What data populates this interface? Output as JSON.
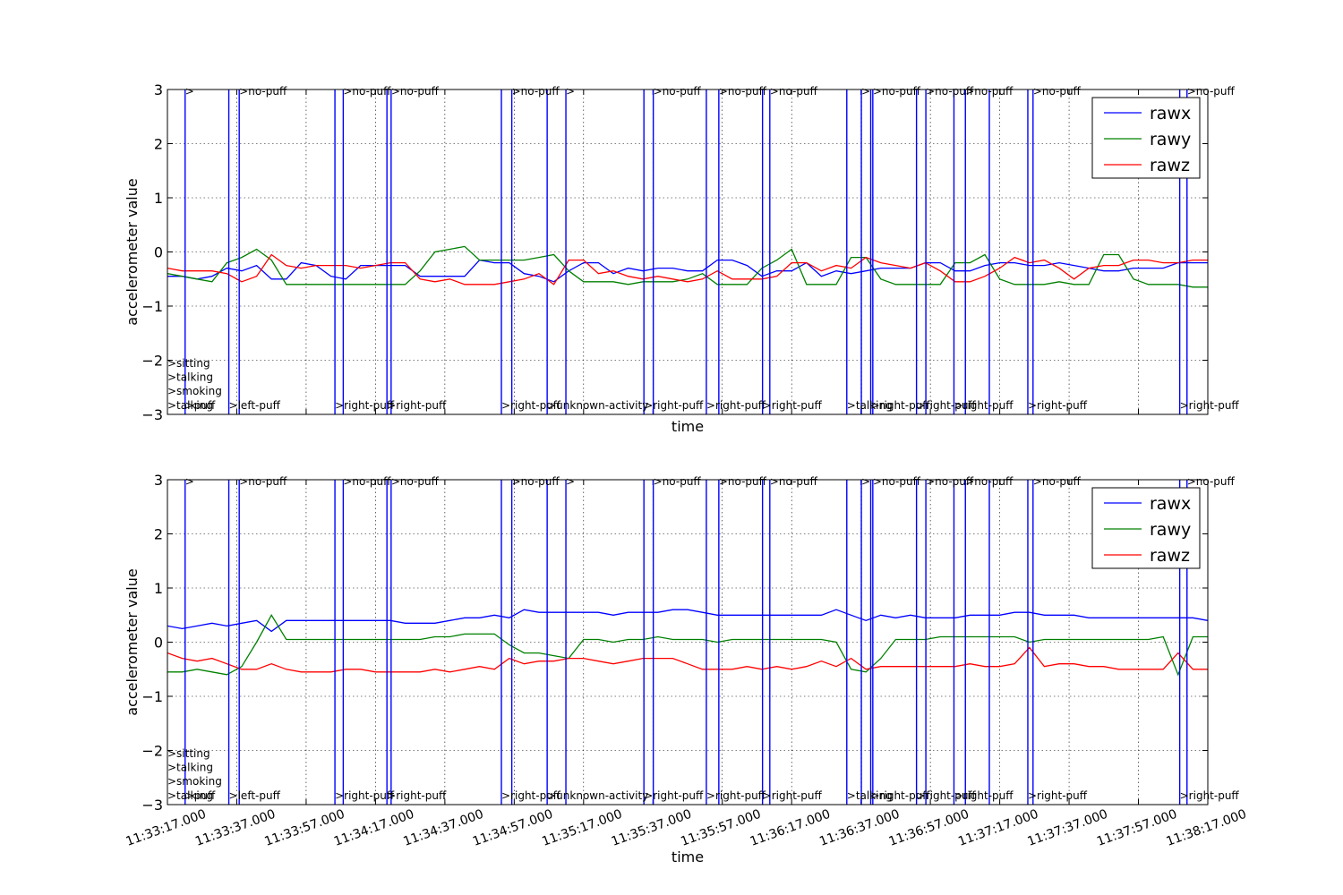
{
  "chart_data": [
    {
      "type": "line",
      "xlabel": "time",
      "ylabel": "accelerometer value",
      "ylim": [
        -3,
        3
      ],
      "yticks": [
        3,
        2,
        1,
        0,
        -1,
        -2,
        -3
      ],
      "ytick_labels": [
        "3",
        "2",
        "1",
        "0",
        "−1",
        "−2",
        "−3"
      ],
      "grid": true,
      "legend_placement": "top-right",
      "x_tick_labels": [],
      "colors": {
        "rawx": "#0000ff",
        "rawy": "#008000",
        "rawz": "#ff0000"
      },
      "series": [
        {
          "name": "rawx",
          "values": [
            -0.45,
            -0.45,
            -0.5,
            -0.45,
            -0.3,
            -0.35,
            -0.25,
            -0.5,
            -0.5,
            -0.2,
            -0.25,
            -0.45,
            -0.5,
            -0.25,
            -0.25,
            -0.25,
            -0.25,
            -0.45,
            -0.45,
            -0.45,
            -0.45,
            -0.15,
            -0.2,
            -0.2,
            -0.4,
            -0.45,
            -0.55,
            -0.35,
            -0.2,
            -0.2,
            -0.4,
            -0.3,
            -0.35,
            -0.3,
            -0.3,
            -0.35,
            -0.35,
            -0.15,
            -0.15,
            -0.25,
            -0.45,
            -0.35,
            -0.35,
            -0.2,
            -0.45,
            -0.35,
            -0.4,
            -0.35,
            -0.3,
            -0.3,
            -0.3,
            -0.2,
            -0.2,
            -0.35,
            -0.35,
            -0.25,
            -0.2,
            -0.2,
            -0.25,
            -0.25,
            -0.2,
            -0.25,
            -0.3,
            -0.35,
            -0.35,
            -0.3,
            -0.3,
            -0.3,
            -0.2,
            -0.2,
            -0.2
          ]
        },
        {
          "name": "rawy",
          "values": [
            -0.4,
            -0.45,
            -0.5,
            -0.55,
            -0.2,
            -0.1,
            0.05,
            -0.15,
            -0.6,
            -0.6,
            -0.6,
            -0.6,
            -0.6,
            -0.6,
            -0.6,
            -0.6,
            -0.6,
            -0.35,
            0.0,
            0.05,
            0.1,
            -0.15,
            -0.15,
            -0.15,
            -0.15,
            -0.1,
            -0.05,
            -0.35,
            -0.55,
            -0.55,
            -0.55,
            -0.6,
            -0.55,
            -0.55,
            -0.55,
            -0.5,
            -0.4,
            -0.6,
            -0.6,
            -0.6,
            -0.3,
            -0.15,
            0.05,
            -0.6,
            -0.6,
            -0.6,
            -0.1,
            -0.1,
            -0.5,
            -0.6,
            -0.6,
            -0.6,
            -0.6,
            -0.2,
            -0.2,
            -0.05,
            -0.5,
            -0.6,
            -0.6,
            -0.6,
            -0.55,
            -0.6,
            -0.6,
            -0.05,
            -0.05,
            -0.5,
            -0.6,
            -0.6,
            -0.6,
            -0.65,
            -0.65
          ]
        },
        {
          "name": "rawz",
          "values": [
            -0.3,
            -0.35,
            -0.35,
            -0.35,
            -0.4,
            -0.55,
            -0.45,
            -0.05,
            -0.25,
            -0.3,
            -0.25,
            -0.25,
            -0.25,
            -0.3,
            -0.25,
            -0.2,
            -0.2,
            -0.5,
            -0.55,
            -0.5,
            -0.6,
            -0.6,
            -0.6,
            -0.55,
            -0.5,
            -0.4,
            -0.6,
            -0.15,
            -0.15,
            -0.4,
            -0.35,
            -0.45,
            -0.5,
            -0.45,
            -0.5,
            -0.55,
            -0.5,
            -0.35,
            -0.5,
            -0.5,
            -0.5,
            -0.45,
            -0.2,
            -0.2,
            -0.35,
            -0.25,
            -0.3,
            -0.1,
            -0.2,
            -0.25,
            -0.3,
            -0.2,
            -0.35,
            -0.55,
            -0.55,
            -0.45,
            -0.3,
            -0.1,
            -0.2,
            -0.15,
            -0.3,
            -0.5,
            -0.3,
            -0.25,
            -0.25,
            -0.15,
            -0.15,
            -0.2,
            -0.2,
            -0.15,
            -0.15
          ]
        }
      ],
      "event_lines": [
        0.017,
        0.059,
        0.069,
        0.161,
        0.169,
        0.211,
        0.215,
        0.321,
        0.331,
        0.365,
        0.383,
        0.458,
        0.467,
        0.518,
        0.53,
        0.572,
        0.579,
        0.653,
        0.667,
        0.676,
        0.678,
        0.72,
        0.729,
        0.756,
        0.767,
        0.79,
        0.827,
        0.832,
        0.973,
        0.98
      ],
      "annotations_top": [
        {
          "at": 0.017,
          "text": ">"
        },
        {
          "at": 0.069,
          "text": ">no-puff"
        },
        {
          "at": 0.169,
          "text": ">no-puff"
        },
        {
          "at": 0.215,
          "text": ">no-puff"
        },
        {
          "at": 0.331,
          "text": ">no-puff"
        },
        {
          "at": 0.383,
          "text": ">"
        },
        {
          "at": 0.467,
          "text": ">no-puff"
        },
        {
          "at": 0.53,
          "text": ">no-puff"
        },
        {
          "at": 0.579,
          "text": ">no-puff"
        },
        {
          "at": 0.667,
          "text": ">"
        },
        {
          "at": 0.678,
          "text": ">no-puff"
        },
        {
          "at": 0.729,
          "text": ">no-puff"
        },
        {
          "at": 0.767,
          "text": ">no-puff"
        },
        {
          "at": 0.832,
          "text": ">no-puff"
        },
        {
          "at": 0.98,
          "text": ">no-puff"
        }
      ],
      "annotations_bottom": [
        {
          "at": 0.0,
          "text": ">talking"
        },
        {
          "at": 0.017,
          "text": ">puff"
        },
        {
          "at": 0.059,
          "text": ">left-puff"
        },
        {
          "at": 0.161,
          "text": ">right-puff"
        },
        {
          "at": 0.211,
          "text": ">right-puff"
        },
        {
          "at": 0.321,
          "text": ">right-puff"
        },
        {
          "at": 0.365,
          "text": ">unknown-activity"
        },
        {
          "at": 0.458,
          "text": ">right-puff"
        },
        {
          "at": 0.518,
          "text": ">right-puff"
        },
        {
          "at": 0.572,
          "text": ">right-puff"
        },
        {
          "at": 0.653,
          "text": ">talking"
        },
        {
          "at": 0.676,
          "text": ">right-puff"
        },
        {
          "at": 0.72,
          "text": ">right-puff"
        },
        {
          "at": 0.756,
          "text": ">right-puff"
        },
        {
          "at": 0.827,
          "text": ">right-puff"
        },
        {
          "at": 0.973,
          "text": ">right-puff"
        }
      ],
      "annotations_stack": [
        ">sitting",
        ">talking",
        ">smoking"
      ]
    },
    {
      "type": "line",
      "xlabel": "time",
      "ylabel": "accelerometer value",
      "ylim": [
        -3,
        3
      ],
      "yticks": [
        3,
        2,
        1,
        0,
        -1,
        -2,
        -3
      ],
      "ytick_labels": [
        "3",
        "2",
        "1",
        "0",
        "−1",
        "−2",
        "−3"
      ],
      "grid": true,
      "legend_placement": "top-right",
      "x_tick_labels": [
        "11:33:17.000",
        "11:33:37.000",
        "11:33:57.000",
        "11:34:17.000",
        "11:34:37.000",
        "11:34:57.000",
        "11:35:17.000",
        "11:35:37.000",
        "11:35:57.000",
        "11:36:17.000",
        "11:36:37.000",
        "11:36:57.000",
        "11:37:17.000",
        "11:37:37.000",
        "11:37:57.000",
        "11:38:17.000"
      ],
      "colors": {
        "rawx": "#0000ff",
        "rawy": "#008000",
        "rawz": "#ff0000"
      },
      "series": [
        {
          "name": "rawx",
          "values": [
            0.3,
            0.25,
            0.3,
            0.35,
            0.3,
            0.35,
            0.4,
            0.2,
            0.4,
            0.4,
            0.4,
            0.4,
            0.4,
            0.4,
            0.4,
            0.4,
            0.35,
            0.35,
            0.35,
            0.4,
            0.45,
            0.45,
            0.5,
            0.45,
            0.6,
            0.55,
            0.55,
            0.55,
            0.55,
            0.55,
            0.5,
            0.55,
            0.55,
            0.55,
            0.6,
            0.6,
            0.55,
            0.5,
            0.5,
            0.5,
            0.5,
            0.5,
            0.5,
            0.5,
            0.5,
            0.6,
            0.5,
            0.4,
            0.5,
            0.45,
            0.5,
            0.45,
            0.45,
            0.45,
            0.5,
            0.5,
            0.5,
            0.55,
            0.55,
            0.5,
            0.5,
            0.5,
            0.45,
            0.45,
            0.45,
            0.45,
            0.45,
            0.45,
            0.45,
            0.45,
            0.4
          ]
        },
        {
          "name": "rawy",
          "values": [
            -0.55,
            -0.55,
            -0.5,
            -0.55,
            -0.6,
            -0.45,
            0.0,
            0.5,
            0.05,
            0.05,
            0.05,
            0.05,
            0.05,
            0.05,
            0.05,
            0.05,
            0.05,
            0.05,
            0.1,
            0.1,
            0.15,
            0.15,
            0.15,
            -0.05,
            -0.2,
            -0.2,
            -0.25,
            -0.3,
            0.05,
            0.05,
            0.0,
            0.05,
            0.05,
            0.1,
            0.05,
            0.05,
            0.05,
            0.0,
            0.05,
            0.05,
            0.05,
            0.05,
            0.05,
            0.05,
            0.05,
            0.0,
            -0.5,
            -0.55,
            -0.3,
            0.05,
            0.05,
            0.05,
            0.1,
            0.1,
            0.1,
            0.1,
            0.1,
            0.1,
            0.0,
            0.05,
            0.05,
            0.05,
            0.05,
            0.05,
            0.05,
            0.05,
            0.05,
            0.1,
            -0.6,
            0.1,
            0.1
          ]
        },
        {
          "name": "rawz",
          "values": [
            -0.2,
            -0.3,
            -0.35,
            -0.3,
            -0.4,
            -0.5,
            -0.5,
            -0.4,
            -0.5,
            -0.55,
            -0.55,
            -0.55,
            -0.5,
            -0.5,
            -0.55,
            -0.55,
            -0.55,
            -0.55,
            -0.5,
            -0.55,
            -0.5,
            -0.45,
            -0.5,
            -0.3,
            -0.4,
            -0.35,
            -0.35,
            -0.3,
            -0.3,
            -0.35,
            -0.4,
            -0.35,
            -0.3,
            -0.3,
            -0.3,
            -0.4,
            -0.5,
            -0.5,
            -0.5,
            -0.45,
            -0.5,
            -0.45,
            -0.5,
            -0.45,
            -0.35,
            -0.45,
            -0.3,
            -0.5,
            -0.45,
            -0.45,
            -0.45,
            -0.45,
            -0.45,
            -0.45,
            -0.4,
            -0.45,
            -0.45,
            -0.4,
            -0.1,
            -0.45,
            -0.4,
            -0.4,
            -0.45,
            -0.45,
            -0.5,
            -0.5,
            -0.5,
            -0.5,
            -0.2,
            -0.5,
            -0.5
          ]
        }
      ],
      "event_lines": [
        0.017,
        0.059,
        0.069,
        0.161,
        0.169,
        0.211,
        0.215,
        0.321,
        0.331,
        0.365,
        0.383,
        0.458,
        0.467,
        0.518,
        0.53,
        0.572,
        0.579,
        0.653,
        0.667,
        0.676,
        0.678,
        0.72,
        0.729,
        0.756,
        0.767,
        0.79,
        0.827,
        0.832,
        0.973,
        0.98
      ],
      "annotations_top": [
        {
          "at": 0.017,
          "text": ">"
        },
        {
          "at": 0.069,
          "text": ">no-puff"
        },
        {
          "at": 0.169,
          "text": ">no-puff"
        },
        {
          "at": 0.215,
          "text": ">no-puff"
        },
        {
          "at": 0.331,
          "text": ">no-puff"
        },
        {
          "at": 0.383,
          "text": ">"
        },
        {
          "at": 0.467,
          "text": ">no-puff"
        },
        {
          "at": 0.53,
          "text": ">no-puff"
        },
        {
          "at": 0.579,
          "text": ">no-puff"
        },
        {
          "at": 0.667,
          "text": ">"
        },
        {
          "at": 0.678,
          "text": ">no-puff"
        },
        {
          "at": 0.729,
          "text": ">no-puff"
        },
        {
          "at": 0.767,
          "text": ">no-puff"
        },
        {
          "at": 0.832,
          "text": ">no-puff"
        },
        {
          "at": 0.98,
          "text": ">no-puff"
        }
      ],
      "annotations_bottom": [
        {
          "at": 0.0,
          "text": ">talking"
        },
        {
          "at": 0.017,
          "text": ">puff"
        },
        {
          "at": 0.059,
          "text": ">left-puff"
        },
        {
          "at": 0.161,
          "text": ">right-puff"
        },
        {
          "at": 0.211,
          "text": ">right-puff"
        },
        {
          "at": 0.321,
          "text": ">right-puff"
        },
        {
          "at": 0.365,
          "text": ">unknown-activity"
        },
        {
          "at": 0.458,
          "text": ">right-puff"
        },
        {
          "at": 0.518,
          "text": ">right-puff"
        },
        {
          "at": 0.572,
          "text": ">right-puff"
        },
        {
          "at": 0.653,
          "text": ">talking"
        },
        {
          "at": 0.676,
          "text": ">right-puff"
        },
        {
          "at": 0.72,
          "text": ">right-puff"
        },
        {
          "at": 0.756,
          "text": ">right-puff"
        },
        {
          "at": 0.827,
          "text": ">right-puff"
        },
        {
          "at": 0.973,
          "text": ">right-puff"
        }
      ],
      "annotations_stack": [
        ">sitting",
        ">talking",
        ">smoking"
      ]
    }
  ]
}
